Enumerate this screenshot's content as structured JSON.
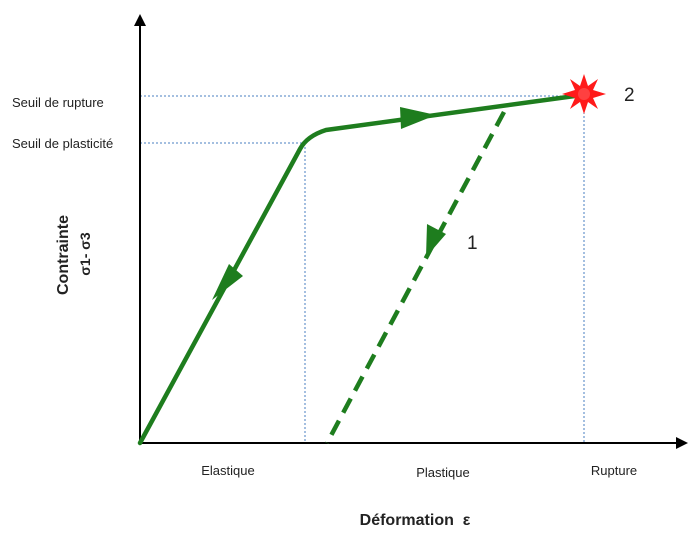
{
  "axes": {
    "x_title": "Déformation  ε",
    "y_title": "Contrainte",
    "y_subtitle": "σ1- σ3"
  },
  "levels": {
    "rupture_label": "Seuil de rupture",
    "plasticity_label": "Seuil de plasticité"
  },
  "regions": {
    "elastic": "Elastique",
    "plastic": "Plastique",
    "rupture": "Rupture"
  },
  "paths": {
    "unloading_label": "1",
    "rupture_point_label": "2"
  },
  "colors": {
    "curve": "#1e7d1e",
    "guide": "#4a7fc1",
    "axis": "#000000",
    "burst": "#ff1a1a"
  },
  "icons": {
    "rupture_marker": "burst-star-icon",
    "direction_marker": "arrowhead-icon"
  }
}
